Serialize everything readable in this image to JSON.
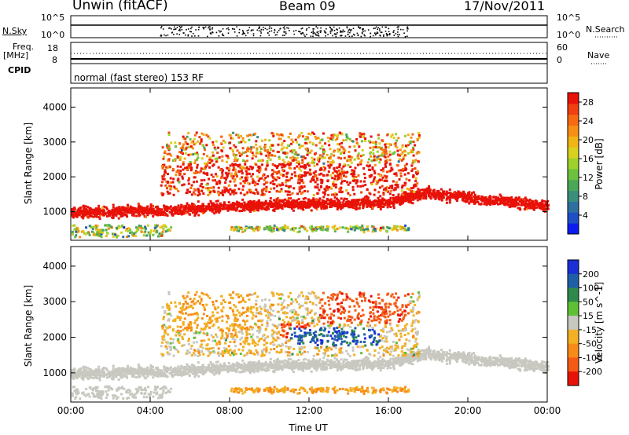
{
  "header": {
    "station": "Unwin (fitACF)",
    "beam": "Beam 09",
    "date": "17/Nov/2011"
  },
  "status_panels": {
    "nsky_label": "N.Sky",
    "nsky_ticks": [
      "10^5",
      "10^0"
    ],
    "nsearch_label": "N.Search",
    "nsearch_ticks": [
      "10^5",
      "10^0"
    ],
    "freq_label_1": "Freq.",
    "freq_label_2": "[MHz]",
    "freq_ticks": [
      "18",
      "8"
    ],
    "nave_label": "Nave",
    "nave_ticks": [
      "60",
      "0"
    ],
    "cpid_label": "CPID",
    "cpid_text": "normal (fast stereo) 153 RF"
  },
  "chart_data": [
    {
      "type": "heatmap",
      "name": "power",
      "ylabel": "Slant Range [km]",
      "xlabel": "",
      "x_range": [
        "00:00",
        "00:00"
      ],
      "ylim": [
        180,
        4550
      ],
      "y_ticks": [
        1000,
        2000,
        3000,
        4000
      ],
      "colorbar": {
        "label": "Power [dB]",
        "range": [
          0,
          30
        ],
        "ticks": [
          4,
          8,
          12,
          16,
          20,
          24,
          28
        ],
        "colors": [
          "#0a1df0",
          "#1e4fc4",
          "#2e6f9f",
          "#3a8f7a",
          "#4aa858",
          "#6cc23c",
          "#9ed12c",
          "#d8d21e",
          "#f0b417",
          "#f78f14",
          "#f76a12",
          "#f03f10",
          "#e81208"
        ]
      },
      "features": [
        {
          "band": "main echo",
          "start": "00:00",
          "end": "00:00",
          "range_km": [
            900,
            1300
          ],
          "peak_power_db": 28
        },
        {
          "band": "upper echo",
          "start": "04:30",
          "end": "17:30",
          "range_km": [
            1500,
            3300
          ],
          "peak_power_db": 24
        }
      ]
    },
    {
      "type": "heatmap",
      "name": "velocity",
      "ylabel": "Slant Range [km]",
      "xlabel": "Time UT",
      "x_ticks": [
        "00:00",
        "04:00",
        "08:00",
        "12:00",
        "16:00",
        "20:00",
        "00:00"
      ],
      "ylim": [
        180,
        4550
      ],
      "y_ticks": [
        1000,
        2000,
        3000,
        4000
      ],
      "colorbar": {
        "label": "Velocity [m s^-1]",
        "ticks": [
          "200",
          "100",
          "50",
          "15",
          "-15",
          "-50",
          "-100",
          "-200"
        ],
        "colors": [
          "#1a2fd6",
          "#1f5fa8",
          "#2d8a4a",
          "#5fc035",
          "#c8c8c0",
          "#f2b022",
          "#f88a1a",
          "#f55a14",
          "#e81208"
        ]
      },
      "features": [
        {
          "band": "ground scatter",
          "start": "00:00",
          "end": "00:00",
          "range_km": [
            900,
            1400
          ],
          "velocity_ms": 0
        },
        {
          "band": "ionospheric scatter",
          "start": "04:30",
          "end": "17:30",
          "range_km": [
            1500,
            3300
          ],
          "velocity_ms": [
            -200,
            200
          ]
        }
      ]
    }
  ]
}
